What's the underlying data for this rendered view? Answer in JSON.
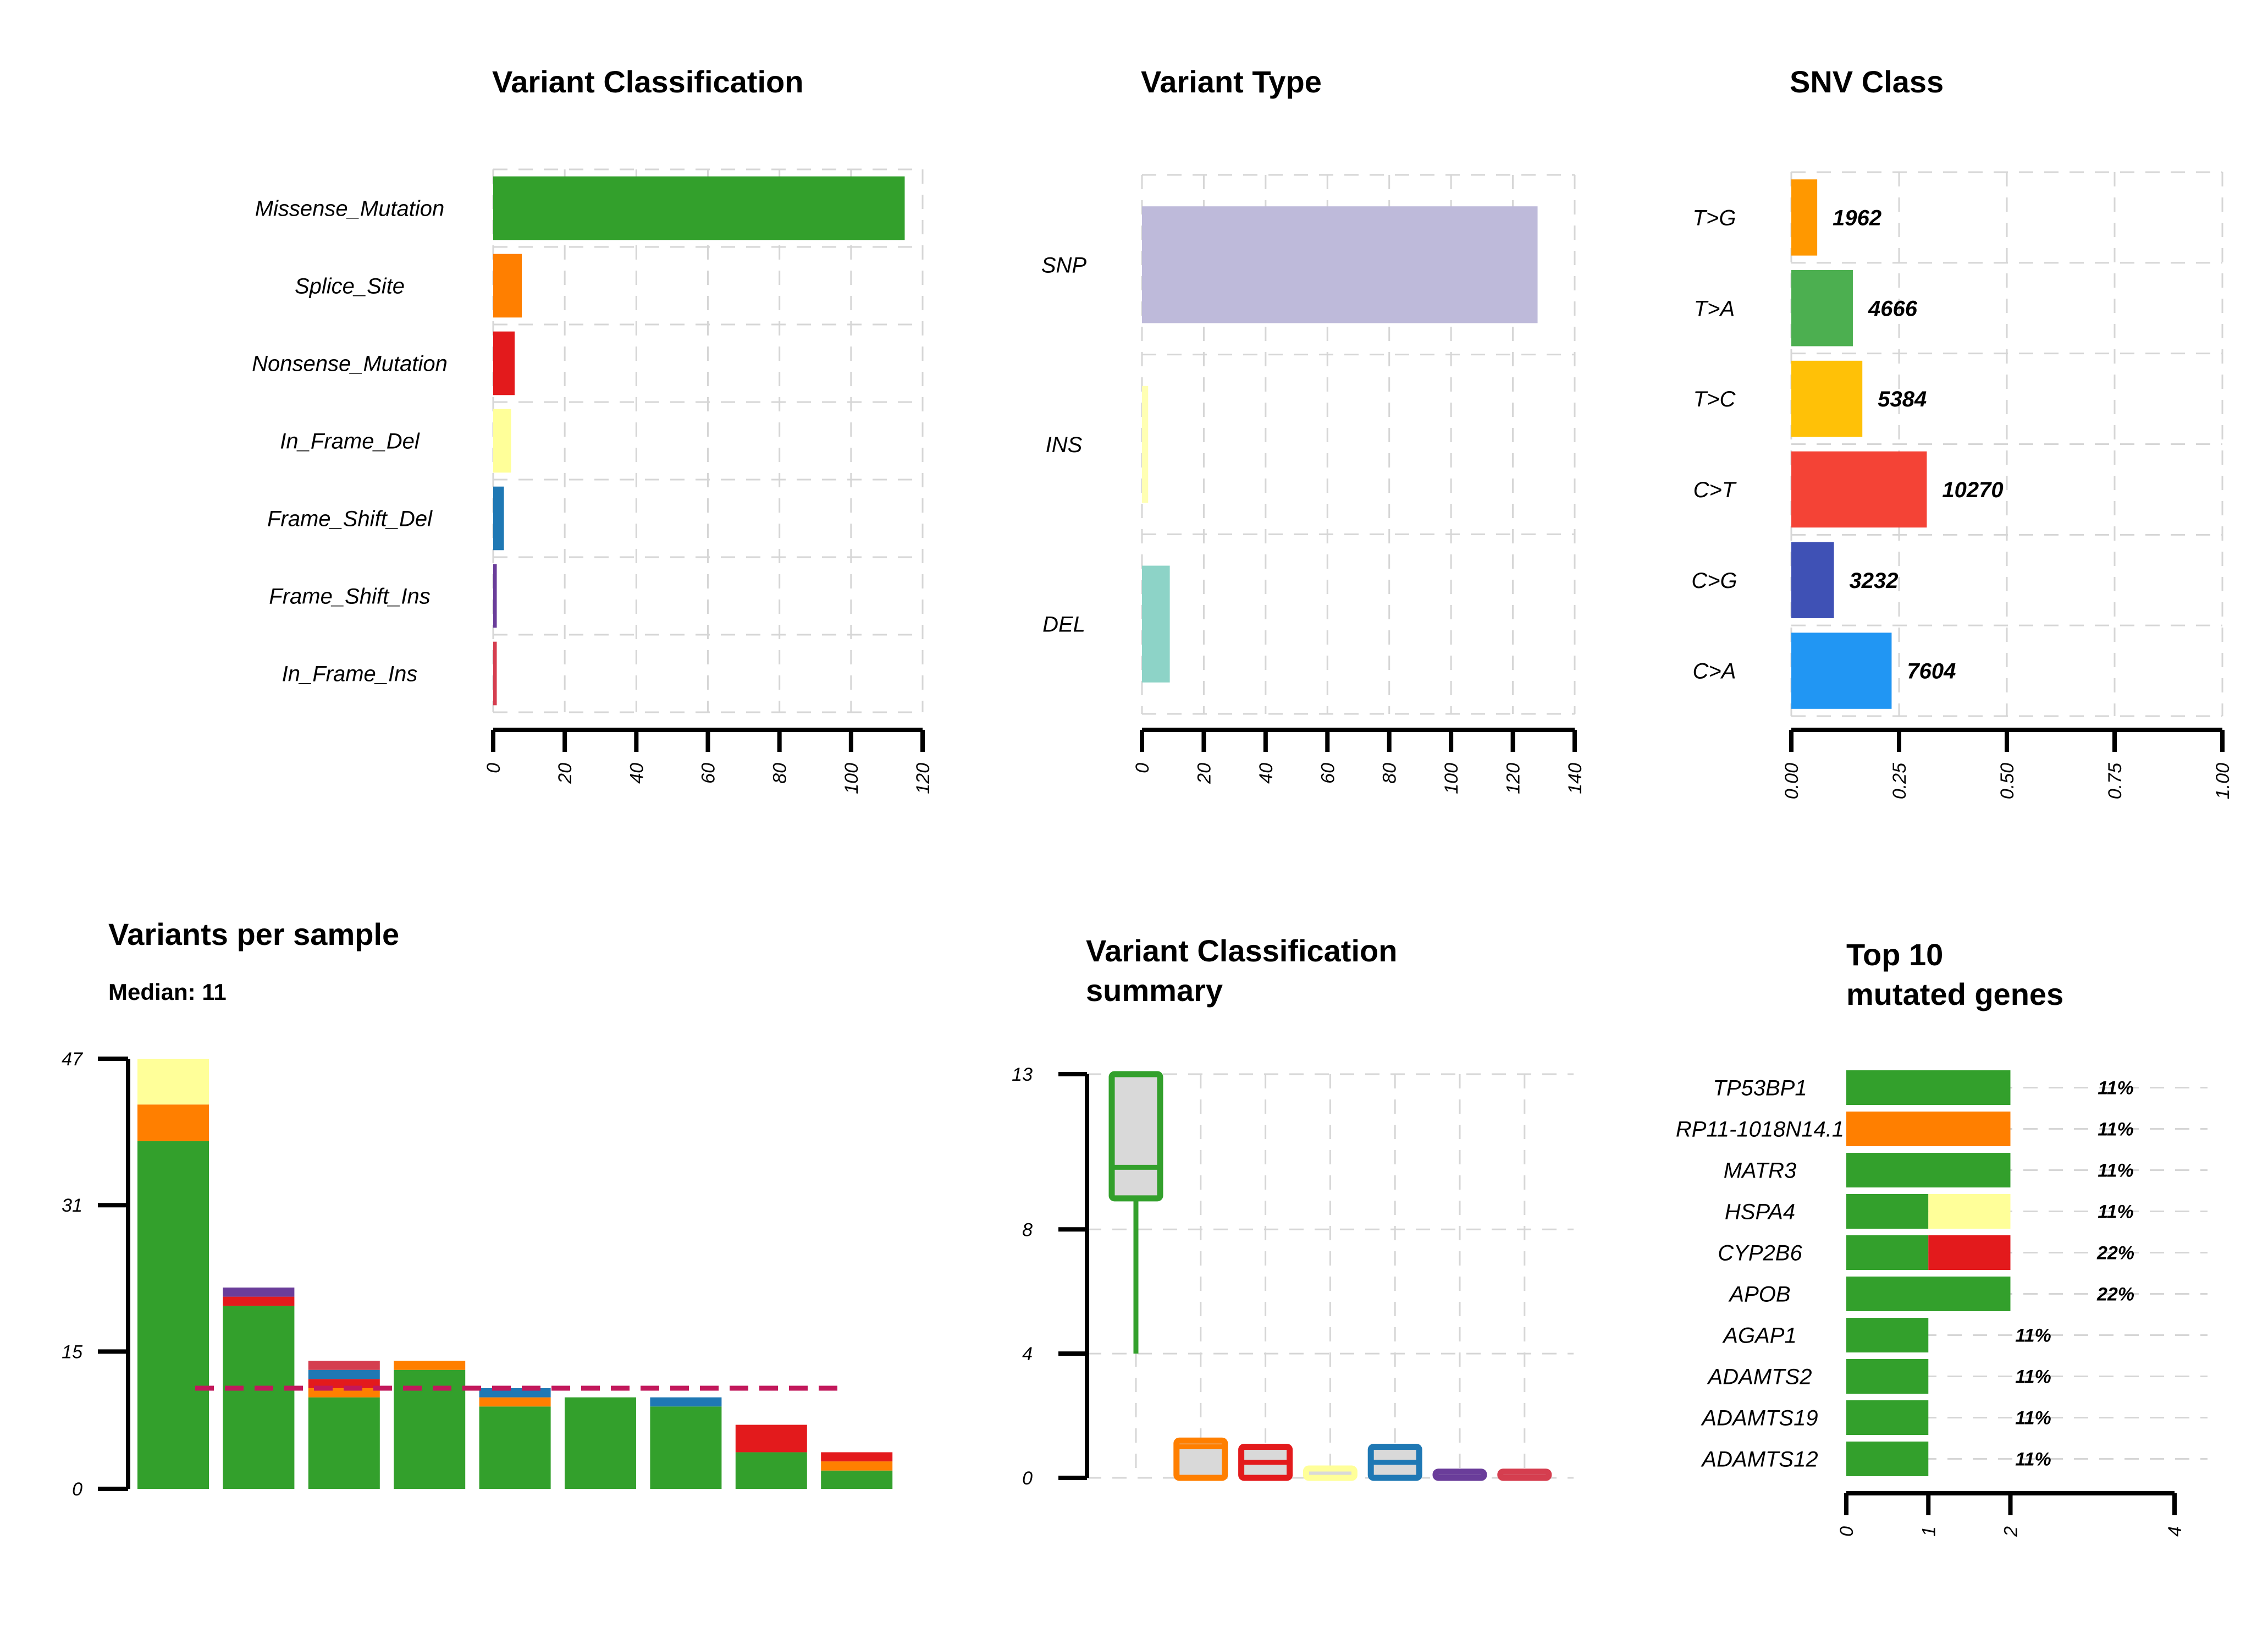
{
  "chart_data": [
    {
      "id": "variant_classification",
      "type": "bar",
      "orientation": "horizontal",
      "title": "Variant Classification",
      "categories": [
        "Missense_Mutation",
        "Splice_Site",
        "Nonsense_Mutation",
        "In_Frame_Del",
        "Frame_Shift_Del",
        "Frame_Shift_Ins",
        "In_Frame_Ins"
      ],
      "values": [
        115,
        8,
        6,
        5,
        3,
        1,
        1
      ],
      "colors": [
        "#33a02c",
        "#ff7f00",
        "#e31a1c",
        "#ffff99",
        "#1f78b4",
        "#6a3d9a",
        "#d53e4f"
      ],
      "ticks": [
        "0",
        "20",
        "40",
        "60",
        "80",
        "100",
        "120"
      ],
      "xlim": [
        0,
        120
      ],
      "grid": true
    },
    {
      "id": "variant_type",
      "type": "bar",
      "orientation": "horizontal",
      "title": "Variant Type",
      "categories": [
        "SNP",
        "INS",
        "DEL"
      ],
      "values": [
        128,
        2,
        9
      ],
      "colors": [
        "#bebada",
        "#ffffb3",
        "#8dd3c7"
      ],
      "ticks": [
        "0",
        "20",
        "40",
        "60",
        "80",
        "100",
        "120",
        "140"
      ],
      "xlim": [
        0,
        140
      ],
      "grid": true
    },
    {
      "id": "snv_class",
      "type": "bar",
      "orientation": "horizontal",
      "title": "SNV Class",
      "categories": [
        "T>G",
        "T>A",
        "T>C",
        "C>T",
        "C>G",
        "C>A"
      ],
      "values": [
        0.0601,
        0.1428,
        0.1648,
        0.3143,
        0.0989,
        0.2327
      ],
      "labels": [
        "1962",
        "4666",
        "5384",
        "10270",
        "3232",
        "7604"
      ],
      "colors": [
        "#ff9800",
        "#4caf50",
        "#ffc107",
        "#f44336",
        "#3f51b5",
        "#2196f3"
      ],
      "ticks": [
        "0.00",
        "0.25",
        "0.50",
        "0.75",
        "1.00"
      ],
      "xlim": [
        0,
        1
      ],
      "grid": true
    },
    {
      "id": "variants_per_sample",
      "type": "bar",
      "stacked": true,
      "title": "Variants per sample",
      "subtitle": "Median: 11",
      "ticks": [
        "0",
        "15",
        "31",
        "47"
      ],
      "ylim": [
        0,
        47
      ],
      "median": 11,
      "series": [
        {
          "color": "#33a02c",
          "values": [
            38,
            20,
            10,
            13,
            9,
            10,
            9,
            4,
            2
          ]
        },
        {
          "color": "#ff7f00",
          "values": [
            4,
            0,
            1,
            1,
            1,
            0,
            0,
            0,
            1
          ]
        },
        {
          "color": "#e31a1c",
          "values": [
            0,
            1,
            1,
            0,
            0,
            0,
            0,
            3,
            1
          ]
        },
        {
          "color": "#ffff99",
          "values": [
            5,
            0,
            0,
            0,
            0,
            0,
            0,
            0,
            0
          ]
        },
        {
          "color": "#1f78b4",
          "values": [
            0,
            0,
            1,
            0,
            1,
            0,
            1,
            0,
            0
          ]
        },
        {
          "color": "#6a3d9a",
          "values": [
            0,
            1,
            0,
            0,
            0,
            0,
            0,
            0,
            0
          ]
        },
        {
          "color": "#d53e4f",
          "values": [
            0,
            0,
            1,
            0,
            0,
            0,
            0,
            0,
            0
          ]
        }
      ]
    },
    {
      "id": "variant_classification_summary",
      "type": "box",
      "title": [
        "Variant Classification",
        "summary"
      ],
      "ticks": [
        "0",
        "4",
        "8",
        "13"
      ],
      "ylim": [
        0,
        13
      ],
      "boxes": [
        {
          "color": "#33a02c",
          "min": 4,
          "q1": 9,
          "median": 10,
          "q3": 13,
          "max": 13
        },
        {
          "color": "#ff7f00",
          "min": 0,
          "q1": 0,
          "median": 1,
          "q3": 1.2,
          "max": 1.2
        },
        {
          "color": "#e31a1c",
          "min": 0,
          "q1": 0,
          "median": 0.5,
          "q3": 1,
          "max": 1
        },
        {
          "color": "#ffff99",
          "min": 0,
          "q1": 0,
          "median": 0,
          "q3": 0.3,
          "max": 0.3
        },
        {
          "color": "#1f78b4",
          "min": 0,
          "q1": 0,
          "median": 0.5,
          "q3": 1,
          "max": 1
        },
        {
          "color": "#6a3d9a",
          "min": 0,
          "q1": 0,
          "median": 0,
          "q3": 0.2,
          "max": 0.2
        },
        {
          "color": "#d53e4f",
          "min": 0,
          "q1": 0,
          "median": 0,
          "q3": 0.2,
          "max": 0.2
        }
      ]
    },
    {
      "id": "top10_genes",
      "type": "bar",
      "stacked": true,
      "orientation": "horizontal",
      "title": [
        "Top 10",
        "mutated genes"
      ],
      "ticks": [
        "0",
        "1",
        "2",
        "4"
      ],
      "tick_values": [
        0,
        1,
        2,
        4
      ],
      "xlim": [
        0,
        4
      ],
      "genes": [
        {
          "name": "TP53BP1",
          "label": "11%",
          "segments": [
            {
              "color": "#33a02c",
              "value": 2
            }
          ]
        },
        {
          "name": "RP11-1018N14.1",
          "label": "11%",
          "segments": [
            {
              "color": "#ff7f00",
              "value": 2
            }
          ]
        },
        {
          "name": "MATR3",
          "label": "11%",
          "segments": [
            {
              "color": "#33a02c",
              "value": 2
            }
          ]
        },
        {
          "name": "HSPA4",
          "label": "11%",
          "segments": [
            {
              "color": "#33a02c",
              "value": 1
            },
            {
              "color": "#ffff99",
              "value": 1
            }
          ]
        },
        {
          "name": "CYP2B6",
          "label": "22%",
          "segments": [
            {
              "color": "#33a02c",
              "value": 1
            },
            {
              "color": "#e31a1c",
              "value": 1
            }
          ]
        },
        {
          "name": "APOB",
          "label": "22%",
          "segments": [
            {
              "color": "#33a02c",
              "value": 2
            }
          ]
        },
        {
          "name": "AGAP1",
          "label": "11%",
          "segments": [
            {
              "color": "#33a02c",
              "value": 1
            }
          ]
        },
        {
          "name": "ADAMTS2",
          "label": "11%",
          "segments": [
            {
              "color": "#33a02c",
              "value": 1
            }
          ]
        },
        {
          "name": "ADAMTS19",
          "label": "11%",
          "segments": [
            {
              "color": "#33a02c",
              "value": 1
            }
          ]
        },
        {
          "name": "ADAMTS12",
          "label": "11%",
          "segments": [
            {
              "color": "#33a02c",
              "value": 1
            }
          ]
        }
      ]
    }
  ]
}
